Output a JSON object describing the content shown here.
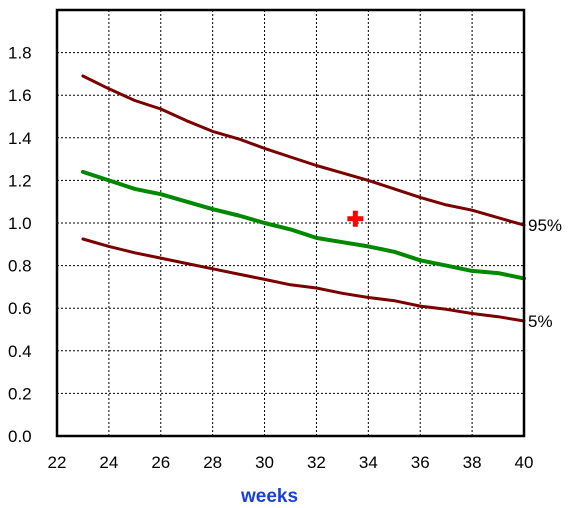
{
  "chart_data": {
    "type": "line",
    "xlabel": "weeks",
    "ylabel": "",
    "xlim": [
      22,
      40
    ],
    "ylim": [
      0.0,
      2.0
    ],
    "xticks": [
      22,
      24,
      26,
      28,
      30,
      32,
      34,
      36,
      38,
      40
    ],
    "xtick_labels": [
      "22",
      "24",
      "26",
      "28",
      "30",
      "32",
      "34",
      "36",
      "38",
      "40"
    ],
    "yticks": [
      0.0,
      0.2,
      0.4,
      0.6,
      0.8,
      1.0,
      1.2,
      1.4,
      1.6,
      1.8
    ],
    "ytick_labels": [
      "0.0",
      "0.2",
      "0.4",
      "0.6",
      "0.8",
      "1.0",
      "1.2",
      "1.4",
      "1.6",
      "1.8"
    ],
    "grid": true,
    "series": [
      {
        "name": "95%",
        "color": "#7a0000",
        "x": [
          23,
          24,
          25,
          26,
          27,
          28,
          29,
          30,
          31,
          32,
          33,
          34,
          35,
          36,
          37,
          38,
          39,
          40
        ],
        "y": [
          1.69,
          1.63,
          1.575,
          1.535,
          1.48,
          1.43,
          1.395,
          1.35,
          1.31,
          1.27,
          1.235,
          1.2,
          1.16,
          1.12,
          1.085,
          1.06,
          1.025,
          0.99
        ]
      },
      {
        "name": "",
        "color": "#008800",
        "x": [
          23,
          24,
          25,
          26,
          27,
          28,
          29,
          30,
          31,
          32,
          33,
          34,
          35,
          36,
          37,
          38,
          39,
          40
        ],
        "y": [
          1.24,
          1.2,
          1.16,
          1.135,
          1.1,
          1.065,
          1.035,
          1.0,
          0.97,
          0.93,
          0.91,
          0.89,
          0.865,
          0.825,
          0.8,
          0.775,
          0.765,
          0.74
        ]
      },
      {
        "name": "5%",
        "color": "#7a0000",
        "x": [
          23,
          24,
          25,
          26,
          27,
          28,
          29,
          30,
          31,
          32,
          33,
          34,
          35,
          36,
          37,
          38,
          39,
          40
        ],
        "y": [
          0.925,
          0.89,
          0.86,
          0.835,
          0.81,
          0.785,
          0.76,
          0.735,
          0.71,
          0.695,
          0.67,
          0.65,
          0.635,
          0.61,
          0.595,
          0.575,
          0.56,
          0.54
        ]
      }
    ],
    "markers": [
      {
        "x": 33.5,
        "y": 1.02,
        "symbol": "+",
        "color": "#ff0000"
      }
    ],
    "xlabel_color": "#1a3fd6"
  }
}
